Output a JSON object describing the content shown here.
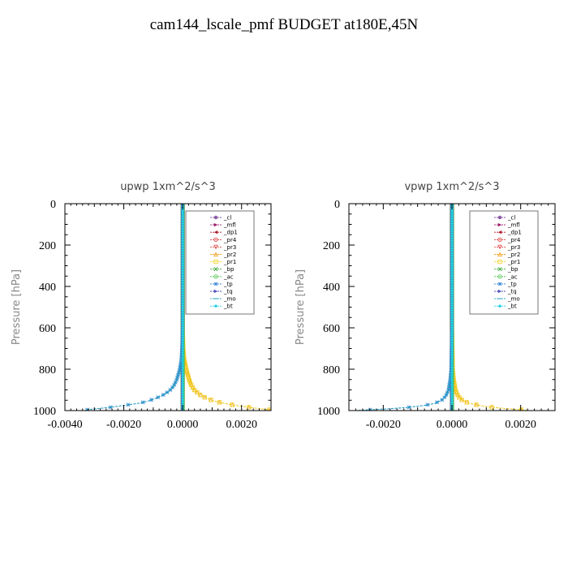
{
  "figure": {
    "title": "cam144_lscale_pmf  BUDGET at180E,45N"
  },
  "legend_entries": [
    {
      "name": "_cl",
      "color": "#8a5aa8",
      "marker": "circle"
    },
    {
      "name": "_mfl",
      "color": "#9a1a6a",
      "marker": "triangle-right"
    },
    {
      "name": "_dp1",
      "color": "#b01a2a",
      "marker": "triangle-left"
    },
    {
      "name": "_pr4",
      "color": "#d83030",
      "marker": "circle-open"
    },
    {
      "name": "_pr3",
      "color": "#e05050",
      "marker": "triangle-down"
    },
    {
      "name": "_pr2",
      "color": "#f0a020",
      "marker": "triangle"
    },
    {
      "name": "_pr1",
      "color": "#f0d020",
      "marker": "square-open"
    },
    {
      "name": "_bp",
      "color": "#30a030",
      "marker": "x"
    },
    {
      "name": "_ac",
      "color": "#40c040",
      "marker": "circle-open"
    },
    {
      "name": "_tp",
      "color": "#3080d0",
      "marker": "star"
    },
    {
      "name": "_tq",
      "color": "#5050c0",
      "marker": "triangle-right"
    },
    {
      "name": "_mo",
      "color": "#20a0c0",
      "marker": "dash"
    },
    {
      "name": "_bt",
      "color": "#20d0e0",
      "marker": "diamond"
    }
  ],
  "chart_data": [
    {
      "type": "line",
      "title": "upwp   1xm^2/s^3",
      "xlabel": "",
      "ylabel": "Pressure [hPa]",
      "xlim": [
        -0.004,
        0.003
      ],
      "ylim": [
        1000,
        0
      ],
      "xticks": [
        -0.004,
        -0.002,
        0.0,
        0.002
      ],
      "xtick_labels": [
        "-0.0040",
        "-0.0020",
        "0.0000",
        "0.0020"
      ],
      "yticks": [
        0,
        200,
        400,
        600,
        800,
        1000
      ],
      "ytick_labels": [
        "0",
        "200",
        "400",
        "600",
        "800",
        "1000"
      ],
      "legend_position": "top-right",
      "y": [
        0,
        300,
        600,
        700,
        750,
        800,
        850,
        880,
        900,
        920,
        940,
        955,
        965,
        975,
        985,
        992,
        997,
        1000
      ],
      "series": [
        {
          "name": "_cl",
          "values": [
            0,
            0,
            0,
            0,
            0,
            0,
            0,
            0,
            0,
            0,
            0,
            0,
            0,
            0,
            0,
            0,
            0,
            0
          ]
        },
        {
          "name": "_mfl",
          "values": [
            0,
            0,
            0,
            0,
            0,
            0,
            0,
            0,
            0,
            0,
            0,
            0,
            0,
            0,
            0,
            0,
            0,
            0
          ]
        },
        {
          "name": "_dp1",
          "values": [
            0,
            0,
            0,
            0,
            0,
            0,
            0,
            0,
            0,
            0,
            0,
            0,
            0,
            0,
            0,
            0,
            0,
            0
          ]
        },
        {
          "name": "_pr4",
          "values": [
            0,
            0,
            0,
            0,
            0,
            0,
            0,
            0,
            0,
            0,
            0,
            0,
            0,
            0,
            0,
            0,
            0,
            0
          ]
        },
        {
          "name": "_pr3",
          "values": [
            0,
            0,
            0,
            0,
            0,
            0,
            0,
            0,
            0,
            0,
            0,
            0,
            0,
            0,
            0,
            0,
            0,
            0
          ]
        },
        {
          "name": "_pr2",
          "values": [
            0,
            0,
            0,
            2e-05,
            5e-05,
            0.00012,
            0.00022,
            0.0003,
            0.0004,
            0.00055,
            0.0008,
            0.0011,
            0.0014,
            0.0018,
            0.0023,
            0.0027,
            0.003,
            0.003
          ]
        },
        {
          "name": "_pr1",
          "values": [
            0,
            0,
            0,
            2e-05,
            5e-05,
            0.00012,
            0.00022,
            0.0003,
            0.0004,
            0.00055,
            0.0008,
            0.0011,
            0.0014,
            0.0018,
            0.0023,
            0.0027,
            0.003,
            0.003
          ]
        },
        {
          "name": "_bp",
          "values": [
            0,
            0,
            0,
            0,
            0,
            0,
            0,
            0,
            0,
            0,
            0,
            0,
            0,
            0,
            0,
            0,
            0,
            0
          ]
        },
        {
          "name": "_ac",
          "values": [
            0,
            0,
            0,
            0,
            0,
            0,
            0,
            0,
            0,
            0,
            0,
            0,
            0,
            0,
            0,
            0,
            0,
            0
          ]
        },
        {
          "name": "_tp",
          "values": [
            0,
            0,
            0,
            -2e-05,
            -4e-05,
            -0.0001,
            -0.0002,
            -0.0003,
            -0.00042,
            -0.0006,
            -0.0009,
            -0.0012,
            -0.0015,
            -0.002,
            -0.0025,
            -0.003,
            -0.0033,
            -0.0033
          ]
        },
        {
          "name": "_tq",
          "values": [
            0,
            0,
            0,
            0,
            0,
            0,
            0,
            0,
            0,
            0,
            0,
            0,
            0,
            0,
            0,
            0,
            0,
            0
          ]
        },
        {
          "name": "_mo",
          "values": [
            0,
            0,
            0,
            -2e-05,
            -4e-05,
            -0.0001,
            -0.0002,
            -0.0003,
            -0.00042,
            -0.0006,
            -0.0009,
            -0.0012,
            -0.0015,
            -0.002,
            -0.0025,
            -0.003,
            -0.0033,
            -0.0033
          ]
        },
        {
          "name": "_bt",
          "values": [
            0,
            0,
            0,
            0,
            0,
            0,
            0,
            0,
            0,
            0,
            0,
            0,
            0,
            0,
            0,
            0,
            0,
            0
          ]
        }
      ]
    },
    {
      "type": "line",
      "title": "vpwp   1xm^2/s^3",
      "xlabel": "",
      "ylabel": "Pressure [hPa]",
      "xlim": [
        -0.003,
        0.003
      ],
      "ylim": [
        1000,
        0
      ],
      "xticks": [
        -0.002,
        0.0,
        0.002
      ],
      "xtick_labels": [
        "-0.0020",
        "0.0000",
        "0.0020"
      ],
      "yticks": [
        0,
        200,
        400,
        600,
        800,
        1000
      ],
      "ytick_labels": [
        "0",
        "200",
        "400",
        "600",
        "800",
        "1000"
      ],
      "legend_position": "top-right",
      "y": [
        0,
        300,
        600,
        700,
        800,
        850,
        900,
        930,
        950,
        965,
        975,
        985,
        992,
        997,
        1000
      ],
      "series": [
        {
          "name": "_cl",
          "values": [
            0,
            0,
            0,
            0,
            0,
            0,
            0,
            0,
            0,
            0,
            0,
            0,
            0,
            0,
            0
          ]
        },
        {
          "name": "_mfl",
          "values": [
            0,
            0,
            0,
            0,
            0,
            0,
            0,
            0,
            0,
            0,
            0,
            0,
            0,
            0,
            0
          ]
        },
        {
          "name": "_dp1",
          "values": [
            0,
            0,
            0,
            0,
            0,
            0,
            0,
            0,
            0,
            0,
            0,
            0,
            0,
            0,
            0
          ]
        },
        {
          "name": "_pr4",
          "values": [
            0,
            0,
            0,
            0,
            0,
            0,
            0,
            0,
            0,
            0,
            0,
            0,
            0,
            0,
            0
          ]
        },
        {
          "name": "_pr3",
          "values": [
            0,
            0,
            0,
            0,
            0,
            0,
            0,
            0,
            0,
            0,
            0,
            0,
            0,
            0,
            0
          ]
        },
        {
          "name": "_pr2",
          "values": [
            0,
            0,
            0,
            1e-05,
            2e-05,
            5e-05,
            0.0001,
            0.00018,
            0.0003,
            0.0005,
            0.0008,
            0.0012,
            0.0017,
            0.0021,
            0.0022
          ]
        },
        {
          "name": "_pr1",
          "values": [
            0,
            0,
            0,
            1e-05,
            2e-05,
            5e-05,
            0.0001,
            0.00018,
            0.0003,
            0.0005,
            0.0008,
            0.0012,
            0.0017,
            0.0021,
            0.0022
          ]
        },
        {
          "name": "_bp",
          "values": [
            0,
            0,
            0,
            0,
            0,
            0,
            0,
            0,
            0,
            0,
            0,
            0,
            0,
            0,
            0
          ]
        },
        {
          "name": "_ac",
          "values": [
            0,
            0,
            0,
            0,
            0,
            0,
            0,
            0,
            0,
            0,
            0,
            0,
            0,
            0,
            0
          ]
        },
        {
          "name": "_tp",
          "values": [
            0,
            0,
            0,
            -1e-05,
            -2e-05,
            -5e-05,
            -0.0001,
            -0.00018,
            -0.0003,
            -0.0005,
            -0.0008,
            -0.0013,
            -0.0019,
            -0.0025,
            -0.0028
          ]
        },
        {
          "name": "_tq",
          "values": [
            0,
            0,
            0,
            0,
            0,
            0,
            0,
            0,
            0,
            0,
            0,
            0,
            0,
            0,
            0
          ]
        },
        {
          "name": "_mo",
          "values": [
            0,
            0,
            0,
            -1e-05,
            -2e-05,
            -5e-05,
            -0.0001,
            -0.00018,
            -0.0003,
            -0.0005,
            -0.0008,
            -0.0013,
            -0.0019,
            -0.0025,
            -0.0028
          ]
        },
        {
          "name": "_bt",
          "values": [
            0,
            0,
            0,
            0,
            0,
            0,
            0,
            0,
            0,
            0,
            0,
            0,
            0,
            0,
            0
          ]
        }
      ]
    }
  ]
}
